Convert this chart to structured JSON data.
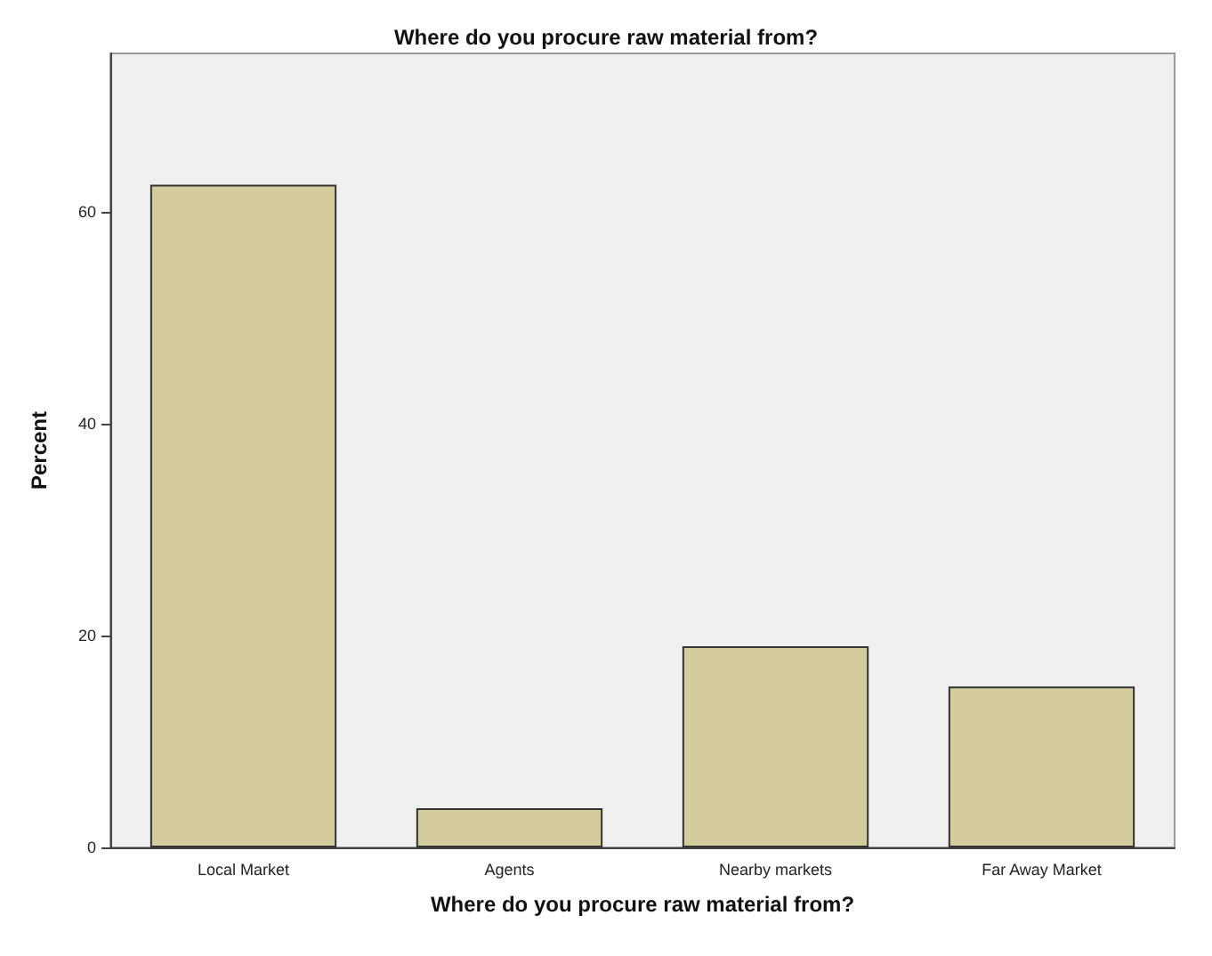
{
  "chart_data": {
    "type": "bar",
    "title": "Where do you procure raw material from?",
    "xlabel": "Where do you procure raw material from?",
    "ylabel": "Percent",
    "categories": [
      "Local Market",
      "Agents",
      "Nearby markets",
      "Far Away Market"
    ],
    "series": [
      {
        "color": "#d4cc9c",
        "values": [
          62.6,
          3.7,
          19.0,
          15.2
        ]
      }
    ],
    "ylim": [
      0,
      75
    ],
    "yticks": [
      0,
      20,
      40,
      60
    ],
    "grid": false
  }
}
